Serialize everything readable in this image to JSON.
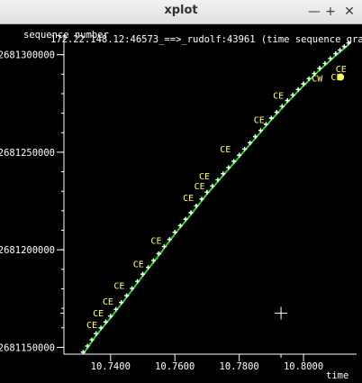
{
  "window": {
    "title": "xplot",
    "controls": {
      "minimize": "—",
      "maximize": "+",
      "close": "✕"
    }
  },
  "plot": {
    "header": "172.22.148.12:46573_==>_rudolf:43961 (time sequence graph)",
    "y_axis_title": "sequence number",
    "x_axis_title": "time",
    "y_ticks": [
      "2681300000",
      "2681250000",
      "2681200000",
      "2681150000"
    ],
    "x_ticks": [
      "10.7400",
      "10.7600",
      "10.7800",
      "10.8000"
    ],
    "ce_label": "CE",
    "cw_label": "CW",
    "colors": {
      "segments": "#ffffff",
      "ack": "#22dd22",
      "marks": "#ffff66",
      "axes": "#ffffff"
    }
  },
  "chart_data": {
    "type": "scatter",
    "title": "172.22.148.12:46573_==>_rudolf:43961 (time sequence graph)",
    "xlabel": "time",
    "ylabel": "sequence number",
    "xlim": [
      10.7255,
      10.8165
    ],
    "ylim": [
      2681146500,
      2681310000
    ],
    "series": [
      {
        "name": "",
        "x": [
          10.7315,
          10.7355,
          10.74,
          10.745,
          10.75,
          10.755,
          10.76,
          10.765,
          10.77,
          10.775,
          10.78,
          10.785,
          10.79,
          10.795,
          10.8,
          10.805,
          10.81,
          10.814
        ],
        "y": [
          2681147500,
          2681157000,
          2681166000,
          2681176500,
          2681187500,
          2681198000,
          2681209000,
          2681219000,
          2681229500,
          2681239000,
          2681248500,
          2681258000,
          2681267500,
          2681276500,
          2681285000,
          2681293000,
          2681300500,
          2681306000
        ]
      }
    ],
    "ce_marks": [
      {
        "x": 10.7325,
        "y": 2681160000
      },
      {
        "x": 10.7345,
        "y": 2681166000
      },
      {
        "x": 10.7375,
        "y": 2681172000
      },
      {
        "x": 10.741,
        "y": 2681180000
      },
      {
        "x": 10.747,
        "y": 2681191000
      },
      {
        "x": 10.7525,
        "y": 2681203000
      },
      {
        "x": 10.7625,
        "y": 2681225000
      },
      {
        "x": 10.766,
        "y": 2681231000
      },
      {
        "x": 10.7675,
        "y": 2681236000
      },
      {
        "x": 10.774,
        "y": 2681250000
      },
      {
        "x": 10.7845,
        "y": 2681265000
      },
      {
        "x": 10.7905,
        "y": 2681277500
      },
      {
        "x": 10.81,
        "y": 2681291000
      },
      {
        "x": 10.8085,
        "y": 2681287000
      }
    ],
    "cursor": {
      "x": 10.793,
      "y": 2681167500
    }
  }
}
